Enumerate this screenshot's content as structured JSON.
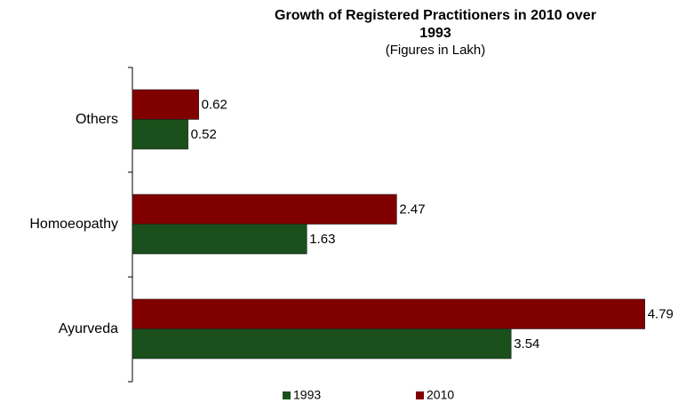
{
  "chart_data": {
    "type": "hbar",
    "title": "Growth of Registered Practitioners in 2010 over 1993",
    "subtitle": "(Figures in Lakh)",
    "categories": [
      "Others",
      "Homoeopathy",
      "Ayurveda"
    ],
    "series": [
      {
        "name": "1993",
        "color": "#1b4f1b",
        "values": [
          0.52,
          1.63,
          3.54
        ]
      },
      {
        "name": "2010",
        "color": "#800000",
        "values": [
          0.62,
          2.47,
          4.79
        ]
      }
    ],
    "xlim": [
      0,
      5
    ],
    "legend": "bottom"
  }
}
